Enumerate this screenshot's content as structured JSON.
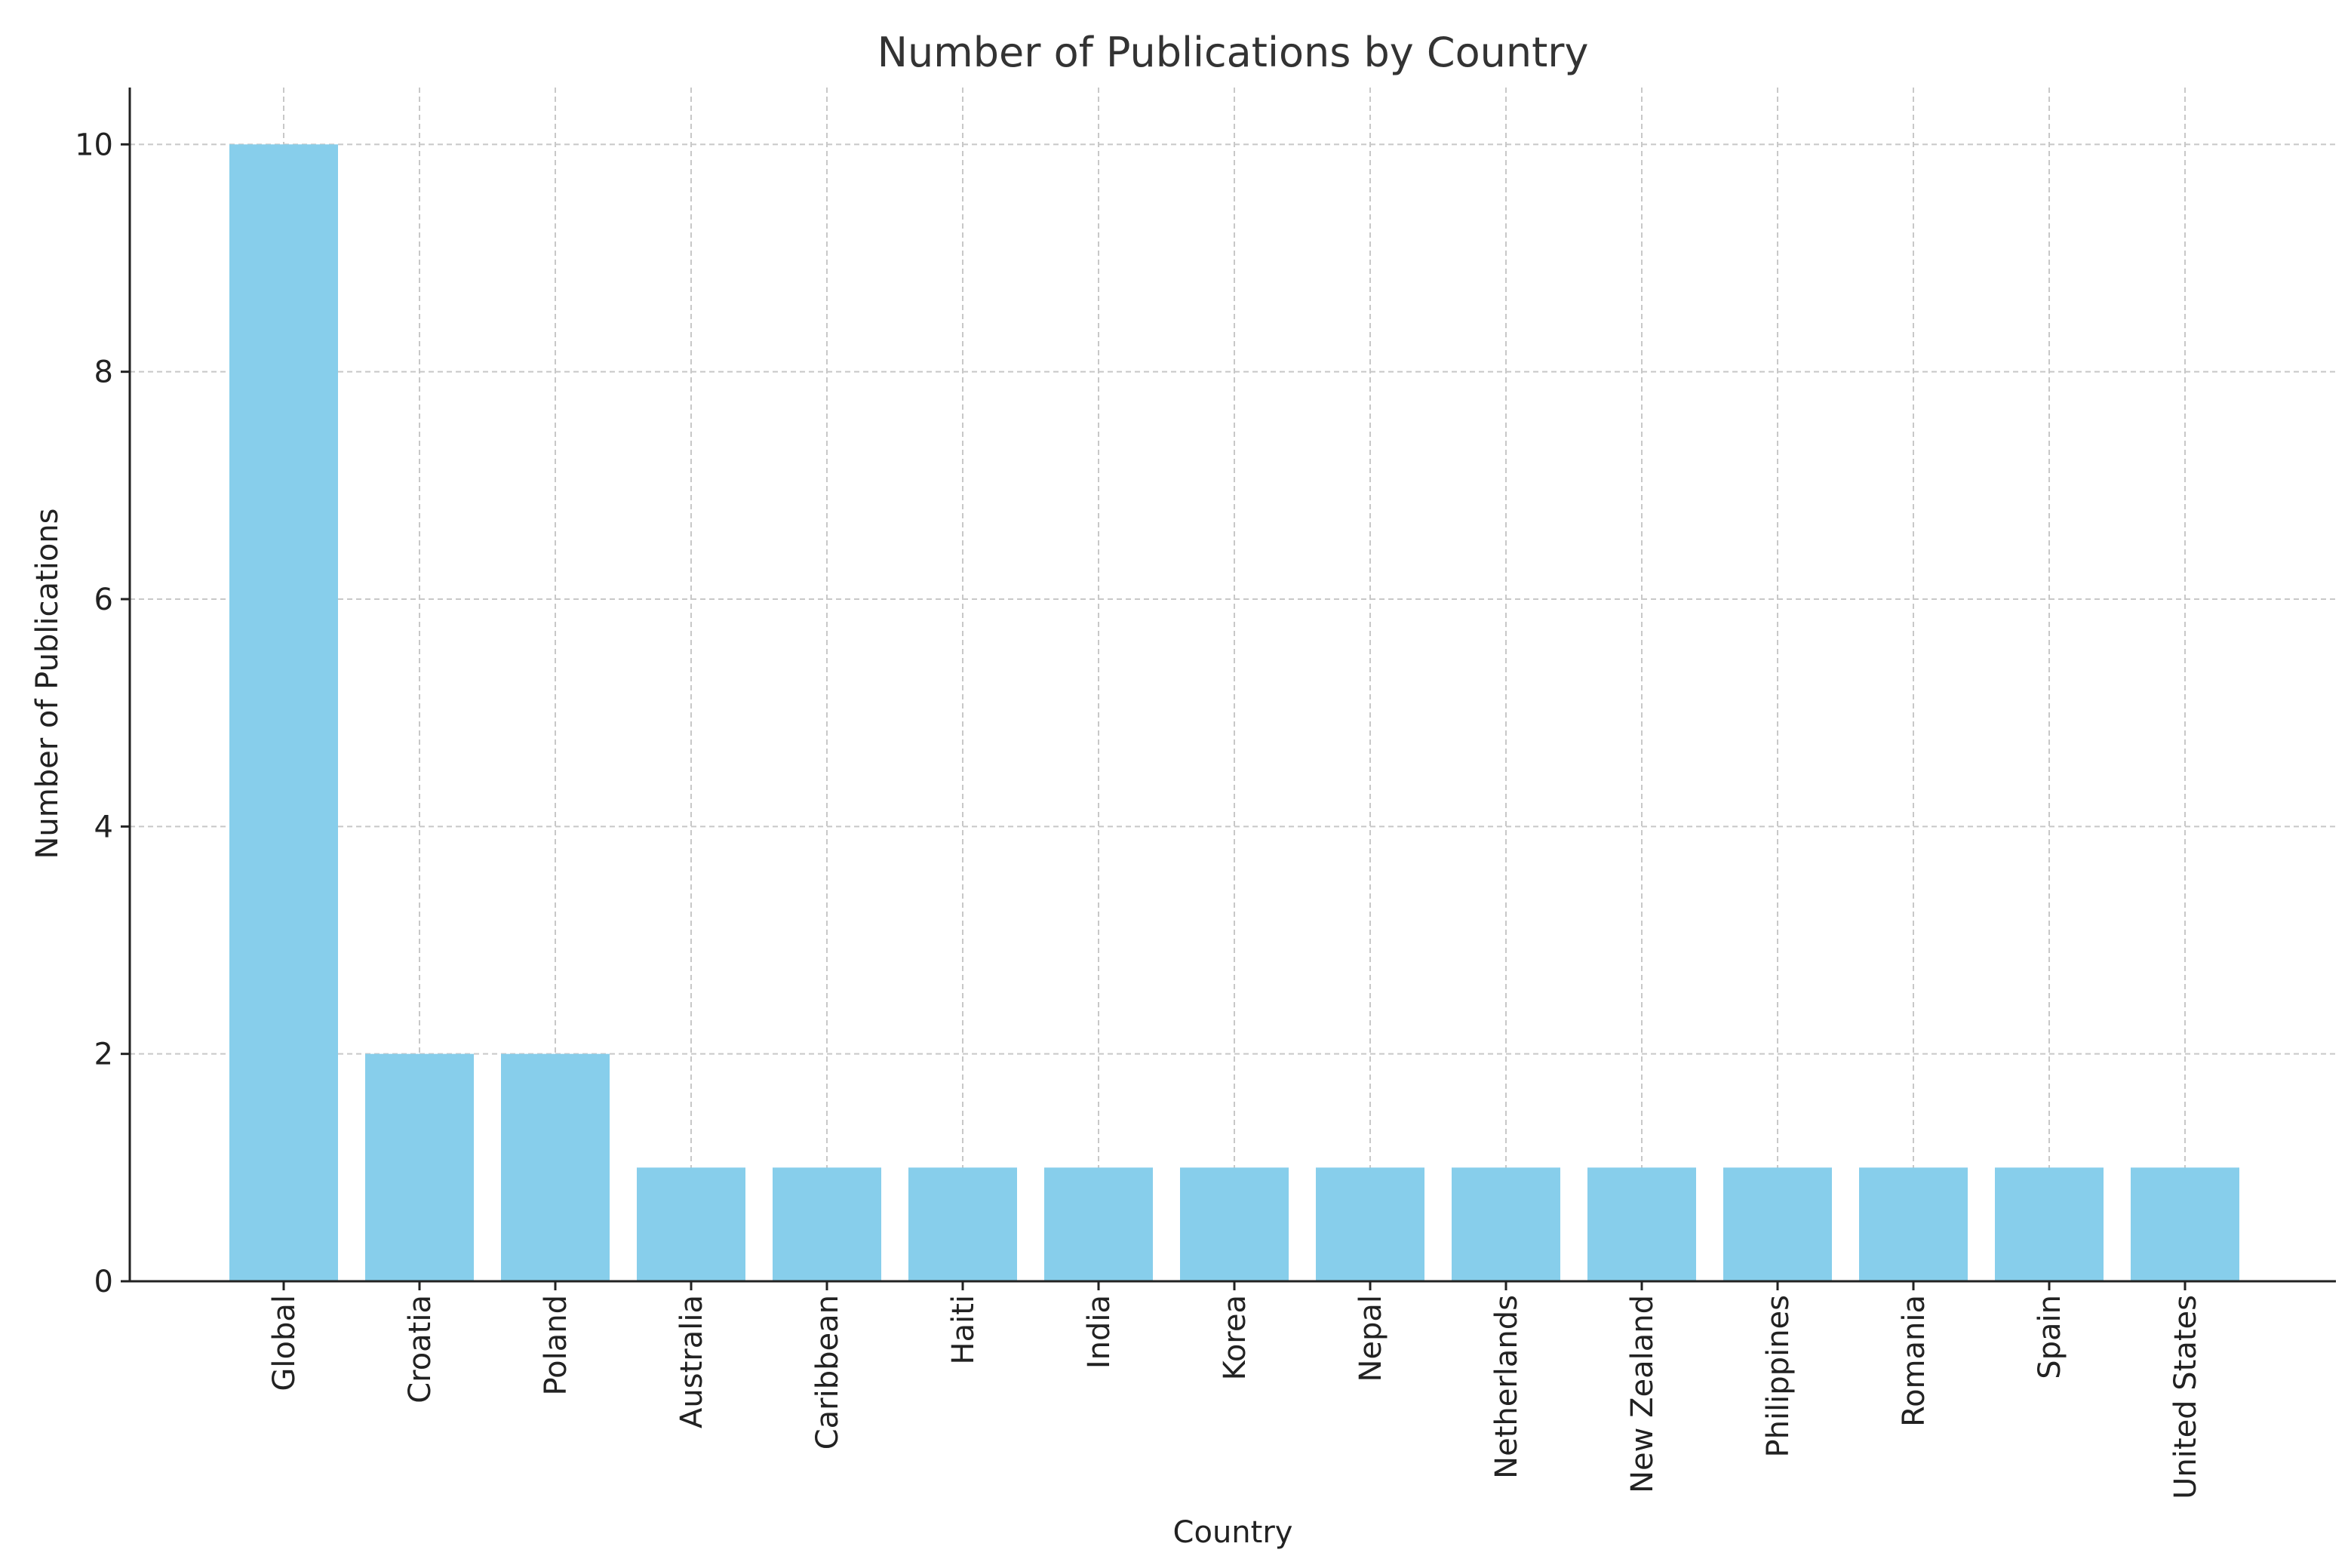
{
  "chart_data": {
    "type": "bar",
    "title": "Number of Publications by Country",
    "xlabel": "Country",
    "ylabel": "Number of Publications",
    "categories": [
      "Global",
      "Croatia",
      "Poland",
      "Australia",
      "Caribbean",
      "Haiti",
      "India",
      "Korea",
      "Nepal",
      "Netherlands",
      "New Zealand",
      "Philippines",
      "Romania",
      "Spain",
      "United States"
    ],
    "values": [
      10,
      2,
      2,
      1,
      1,
      1,
      1,
      1,
      1,
      1,
      1,
      1,
      1,
      1,
      1
    ],
    "ylim": [
      0,
      10.5
    ],
    "yticks": [
      0,
      2,
      4,
      6,
      8,
      10
    ],
    "grid": true,
    "bar_color": "#87CEEB"
  }
}
